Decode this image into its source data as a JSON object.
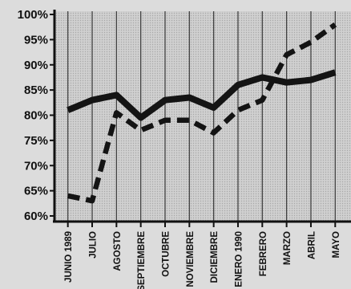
{
  "chart_data": {
    "type": "line",
    "categories": [
      "JUNIO 1989",
      "JULIO",
      "AGOSTO",
      "SEPTIEMBRE",
      "OCTUBRE",
      "NOVIEMBRE",
      "DICIEMBRE",
      "ENERO 1990",
      "FEBRERO",
      "MARZO",
      "ABRIL",
      "MAYO"
    ],
    "series": [
      {
        "values": [
          81,
          83,
          84,
          79.5,
          83,
          83.5,
          81.5,
          86,
          87.5,
          86.5,
          87,
          88.5
        ],
        "style": "solid",
        "color": "#141414"
      },
      {
        "values": [
          64,
          63,
          80.5,
          77,
          79,
          79,
          76.5,
          81,
          83,
          92,
          94.5,
          98
        ],
        "style": "dashed",
        "color": "#141414"
      }
    ],
    "y_ticks": [
      "100%",
      "95%",
      "90%",
      "85%",
      "80%",
      "75%",
      "70%",
      "65%",
      "60%"
    ],
    "ylim": [
      60,
      100
    ],
    "grid": "vertical",
    "plot_background": "#d0d0d0"
  }
}
